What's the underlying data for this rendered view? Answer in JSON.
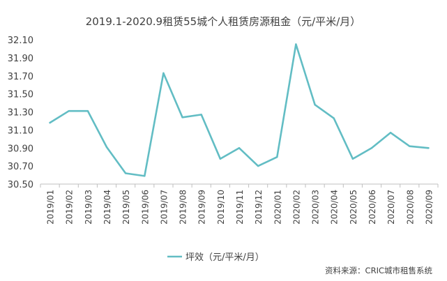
{
  "chart_data": {
    "type": "line",
    "title": "2019.1-2020.9租赁55城个人租赁房源租金（元/平米/月）",
    "categories": [
      "2019/01",
      "2019/02",
      "2019/03",
      "2019/04",
      "2019/05",
      "2019/06",
      "2019/07",
      "2019/08",
      "2019/09",
      "2019/10",
      "2019/11",
      "2019/12",
      "2020/01",
      "2020/02",
      "2020/03",
      "2020/04",
      "2020/05",
      "2020/06",
      "2020/07",
      "2020/08",
      "2020/09"
    ],
    "series": [
      {
        "name": "坪效（元/平米/月）",
        "color": "#62BDC4",
        "values": [
          31.18,
          31.31,
          31.31,
          30.91,
          30.62,
          30.59,
          31.73,
          31.24,
          31.27,
          30.78,
          30.9,
          30.7,
          30.8,
          32.05,
          31.38,
          31.23,
          30.78,
          30.9,
          31.07,
          30.92,
          30.9
        ]
      }
    ],
    "yticks": [
      "30.50",
      "30.70",
      "30.90",
      "31.10",
      "31.30",
      "31.50",
      "31.70",
      "31.90",
      "32.10"
    ],
    "ylim": [
      30.5,
      32.1
    ],
    "grid": false,
    "legend_position": "bottom"
  },
  "source_note": "资料来源：CRIC城市租售系统"
}
